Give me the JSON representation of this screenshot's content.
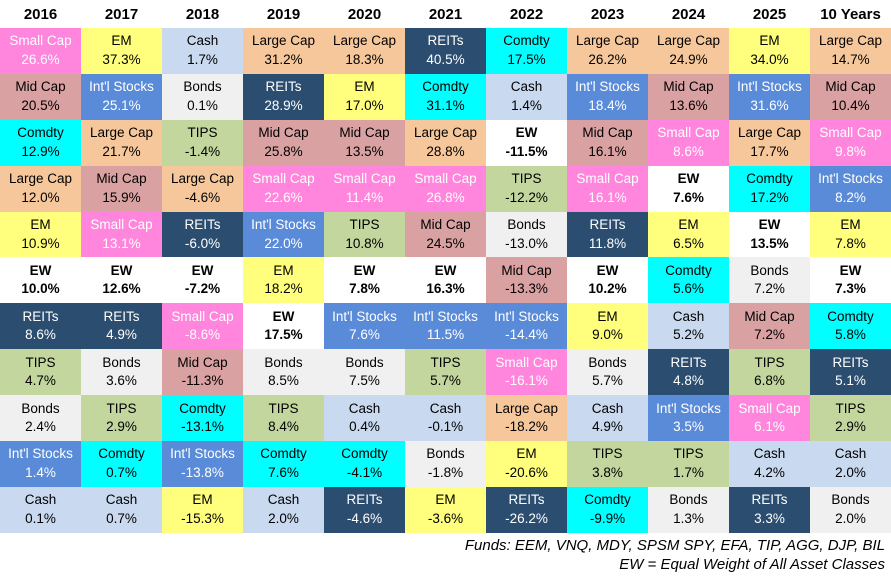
{
  "assets": {
    "small_cap": {
      "label": "Small Cap",
      "bg": "#ff85dd",
      "fg": "#ffffff",
      "bold": false
    },
    "em": {
      "label": "EM",
      "bg": "#ffff7d",
      "fg": "#000000",
      "bold": false
    },
    "cash": {
      "label": "Cash",
      "bg": "#c9d9ef",
      "fg": "#000000",
      "bold": false
    },
    "large_cap": {
      "label": "Large Cap",
      "bg": "#f6c79b",
      "fg": "#000000",
      "bold": false
    },
    "reits": {
      "label": "REITs",
      "bg": "#2b4d6f",
      "fg": "#ffffff",
      "bold": false
    },
    "comdty": {
      "label": "Comdty",
      "bg": "#00ffff",
      "fg": "#000000",
      "bold": false
    },
    "mid_cap": {
      "label": "Mid Cap",
      "bg": "#d9a1a1",
      "fg": "#000000",
      "bold": false
    },
    "intl_stocks": {
      "label": "Int'l Stocks",
      "bg": "#5a8bd8",
      "fg": "#ffffff",
      "bold": false
    },
    "bonds": {
      "label": "Bonds",
      "bg": "#f0f0f0",
      "fg": "#000000",
      "bold": false
    },
    "tips": {
      "label": "TIPS",
      "bg": "#c2d69e",
      "fg": "#000000",
      "bold": false
    },
    "ew": {
      "label": "EW",
      "bg": "#ffffff",
      "fg": "#000000",
      "bold": true
    }
  },
  "chart_data": {
    "type": "table",
    "description": "Asset class annual returns ranked best-to-worst per year (returns quilt heatmap)",
    "columns": [
      "2016",
      "2017",
      "2018",
      "2019",
      "2020",
      "2021",
      "2022",
      "2023",
      "2024",
      "2025",
      "10 Years"
    ],
    "rows": [
      [
        {
          "asset": "small_cap",
          "value": "26.6%"
        },
        {
          "asset": "em",
          "value": "37.3%"
        },
        {
          "asset": "cash",
          "value": "1.7%"
        },
        {
          "asset": "large_cap",
          "value": "31.2%"
        },
        {
          "asset": "large_cap",
          "value": "18.3%"
        },
        {
          "asset": "reits",
          "value": "40.5%"
        },
        {
          "asset": "comdty",
          "value": "17.5%"
        },
        {
          "asset": "large_cap",
          "value": "26.2%"
        },
        {
          "asset": "large_cap",
          "value": "24.9%"
        },
        {
          "asset": "em",
          "value": "34.0%"
        },
        {
          "asset": "large_cap",
          "value": "14.7%"
        }
      ],
      [
        {
          "asset": "mid_cap",
          "value": "20.5%"
        },
        {
          "asset": "intl_stocks",
          "value": "25.1%"
        },
        {
          "asset": "bonds",
          "value": "0.1%"
        },
        {
          "asset": "reits",
          "value": "28.9%"
        },
        {
          "asset": "em",
          "value": "17.0%"
        },
        {
          "asset": "comdty",
          "value": "31.1%"
        },
        {
          "asset": "cash",
          "value": "1.4%"
        },
        {
          "asset": "intl_stocks",
          "value": "18.4%"
        },
        {
          "asset": "mid_cap",
          "value": "13.6%"
        },
        {
          "asset": "intl_stocks",
          "value": "31.6%"
        },
        {
          "asset": "mid_cap",
          "value": "10.4%"
        }
      ],
      [
        {
          "asset": "comdty",
          "value": "12.9%"
        },
        {
          "asset": "large_cap",
          "value": "21.7%"
        },
        {
          "asset": "tips",
          "value": "-1.4%"
        },
        {
          "asset": "mid_cap",
          "value": "25.8%"
        },
        {
          "asset": "mid_cap",
          "value": "13.5%"
        },
        {
          "asset": "large_cap",
          "value": "28.8%"
        },
        {
          "asset": "ew",
          "value": "-11.5%"
        },
        {
          "asset": "mid_cap",
          "value": "16.1%"
        },
        {
          "asset": "small_cap",
          "value": "8.6%"
        },
        {
          "asset": "large_cap",
          "value": "17.7%"
        },
        {
          "asset": "small_cap",
          "value": "9.8%"
        }
      ],
      [
        {
          "asset": "large_cap",
          "value": "12.0%"
        },
        {
          "asset": "mid_cap",
          "value": "15.9%"
        },
        {
          "asset": "large_cap",
          "value": "-4.6%"
        },
        {
          "asset": "small_cap",
          "value": "22.6%"
        },
        {
          "asset": "small_cap",
          "value": "11.4%"
        },
        {
          "asset": "small_cap",
          "value": "26.8%"
        },
        {
          "asset": "tips",
          "value": "-12.2%"
        },
        {
          "asset": "small_cap",
          "value": "16.1%"
        },
        {
          "asset": "ew",
          "value": "7.6%"
        },
        {
          "asset": "comdty",
          "value": "17.2%"
        },
        {
          "asset": "intl_stocks",
          "value": "8.2%"
        }
      ],
      [
        {
          "asset": "em",
          "value": "10.9%"
        },
        {
          "asset": "small_cap",
          "value": "13.1%"
        },
        {
          "asset": "reits",
          "value": "-6.0%"
        },
        {
          "asset": "intl_stocks",
          "value": "22.0%"
        },
        {
          "asset": "tips",
          "value": "10.8%"
        },
        {
          "asset": "mid_cap",
          "value": "24.5%"
        },
        {
          "asset": "bonds",
          "value": "-13.0%"
        },
        {
          "asset": "reits",
          "value": "11.8%"
        },
        {
          "asset": "em",
          "value": "6.5%"
        },
        {
          "asset": "ew",
          "value": "13.5%"
        },
        {
          "asset": "em",
          "value": "7.8%"
        }
      ],
      [
        {
          "asset": "ew",
          "value": "10.0%"
        },
        {
          "asset": "ew",
          "value": "12.6%"
        },
        {
          "asset": "ew",
          "value": "-7.2%"
        },
        {
          "asset": "em",
          "value": "18.2%"
        },
        {
          "asset": "ew",
          "value": "7.8%"
        },
        {
          "asset": "ew",
          "value": "16.3%"
        },
        {
          "asset": "mid_cap",
          "value": "-13.3%"
        },
        {
          "asset": "ew",
          "value": "10.2%"
        },
        {
          "asset": "comdty",
          "value": "5.6%"
        },
        {
          "asset": "bonds",
          "value": "7.2%"
        },
        {
          "asset": "ew",
          "value": "7.3%"
        }
      ],
      [
        {
          "asset": "reits",
          "value": "8.6%"
        },
        {
          "asset": "reits",
          "value": "4.9%"
        },
        {
          "asset": "small_cap",
          "value": "-8.6%"
        },
        {
          "asset": "ew",
          "value": "17.5%"
        },
        {
          "asset": "intl_stocks",
          "value": "7.6%"
        },
        {
          "asset": "intl_stocks",
          "value": "11.5%"
        },
        {
          "asset": "intl_stocks",
          "value": "-14.4%"
        },
        {
          "asset": "em",
          "value": "9.0%"
        },
        {
          "asset": "cash",
          "value": "5.2%"
        },
        {
          "asset": "mid_cap",
          "value": "7.2%"
        },
        {
          "asset": "comdty",
          "value": "5.8%"
        }
      ],
      [
        {
          "asset": "tips",
          "value": "4.7%"
        },
        {
          "asset": "bonds",
          "value": "3.6%"
        },
        {
          "asset": "mid_cap",
          "value": "-11.3%"
        },
        {
          "asset": "bonds",
          "value": "8.5%"
        },
        {
          "asset": "bonds",
          "value": "7.5%"
        },
        {
          "asset": "tips",
          "value": "5.7%"
        },
        {
          "asset": "small_cap",
          "value": "-16.1%"
        },
        {
          "asset": "bonds",
          "value": "5.7%"
        },
        {
          "asset": "reits",
          "value": "4.8%"
        },
        {
          "asset": "tips",
          "value": "6.8%"
        },
        {
          "asset": "reits",
          "value": "5.1%"
        }
      ],
      [
        {
          "asset": "bonds",
          "value": "2.4%"
        },
        {
          "asset": "tips",
          "value": "2.9%"
        },
        {
          "asset": "comdty",
          "value": "-13.1%"
        },
        {
          "asset": "tips",
          "value": "8.4%"
        },
        {
          "asset": "cash",
          "value": "0.4%"
        },
        {
          "asset": "cash",
          "value": "-0.1%"
        },
        {
          "asset": "large_cap",
          "value": "-18.2%"
        },
        {
          "asset": "cash",
          "value": "4.9%"
        },
        {
          "asset": "intl_stocks",
          "value": "3.5%"
        },
        {
          "asset": "small_cap",
          "value": "6.1%"
        },
        {
          "asset": "tips",
          "value": "2.9%"
        }
      ],
      [
        {
          "asset": "intl_stocks",
          "value": "1.4%"
        },
        {
          "asset": "comdty",
          "value": "0.7%"
        },
        {
          "asset": "intl_stocks",
          "value": "-13.8%"
        },
        {
          "asset": "comdty",
          "value": "7.6%"
        },
        {
          "asset": "comdty",
          "value": "-4.1%"
        },
        {
          "asset": "bonds",
          "value": "-1.8%"
        },
        {
          "asset": "em",
          "value": "-20.6%"
        },
        {
          "asset": "tips",
          "value": "3.8%"
        },
        {
          "asset": "tips",
          "value": "1.7%"
        },
        {
          "asset": "cash",
          "value": "4.2%"
        },
        {
          "asset": "cash",
          "value": "2.0%"
        }
      ],
      [
        {
          "asset": "cash",
          "value": "0.1%"
        },
        {
          "asset": "cash",
          "value": "0.7%"
        },
        {
          "asset": "em",
          "value": "-15.3%"
        },
        {
          "asset": "cash",
          "value": "2.0%"
        },
        {
          "asset": "reits",
          "value": "-4.6%"
        },
        {
          "asset": "em",
          "value": "-3.6%"
        },
        {
          "asset": "reits",
          "value": "-26.2%"
        },
        {
          "asset": "comdty",
          "value": "-9.9%"
        },
        {
          "asset": "bonds",
          "value": "1.3%"
        },
        {
          "asset": "reits",
          "value": "3.3%"
        },
        {
          "asset": "bonds",
          "value": "2.0%"
        }
      ]
    ]
  },
  "footer": {
    "line1": "Funds: EEM, VNQ, MDY, SPSM SPY, EFA, TIP, AGG, DJP, BIL",
    "line2": "EW = Equal Weight of All Asset Classes"
  }
}
